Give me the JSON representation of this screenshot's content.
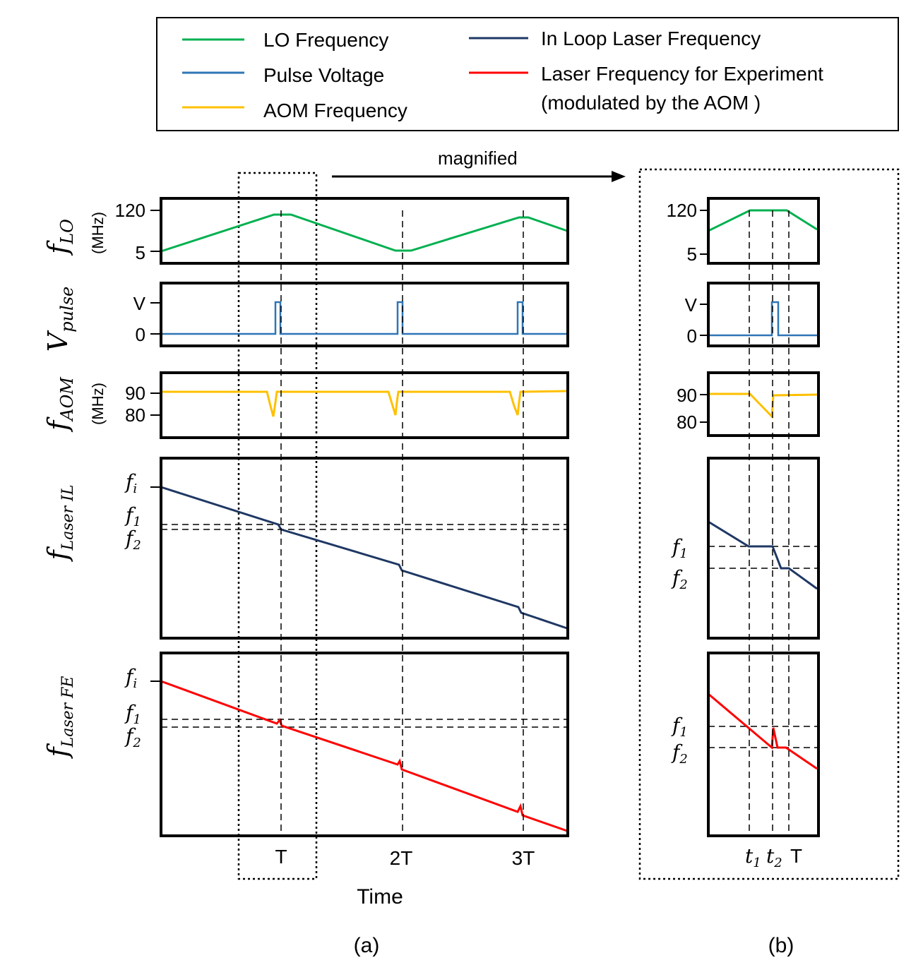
{
  "legend": {
    "items": [
      {
        "label": "LO Frequency",
        "color": "#00b050"
      },
      {
        "label": "Pulse Voltage",
        "color": "#2e75b6"
      },
      {
        "label": "AOM Frequency",
        "color": "#ffc000"
      },
      {
        "label": "In Loop Laser Frequency",
        "color": "#1f3864"
      },
      {
        "label": "Laser Frequency  for Experiment",
        "label_line2": "(modulated by the AOM )",
        "color": "#ff0000"
      }
    ]
  },
  "magnified_label": "magnified",
  "panels": {
    "flo": {
      "symbol": "f",
      "subscript": "LO",
      "unit": "(MHz)",
      "ticks": [
        "120",
        "5"
      ]
    },
    "vpulse": {
      "symbol": "V",
      "subscript": "pulse",
      "ticks": [
        "V",
        "0"
      ]
    },
    "faom": {
      "symbol": "f",
      "subscript": "AOM",
      "unit": "(MHz)",
      "ticks": [
        "90",
        "80"
      ]
    },
    "flaser_il": {
      "symbol": "f",
      "subscript": "Laser IL",
      "ticks": [
        "f",
        "f",
        "f"
      ],
      "tick_subs": [
        "i",
        "1",
        "2"
      ]
    },
    "flaser_fe": {
      "symbol": "f",
      "subscript": "Laser FE",
      "ticks": [
        "f",
        "f",
        "f"
      ],
      "tick_subs": [
        "i",
        "1",
        "2"
      ]
    }
  },
  "time_ticks": {
    "a": [
      "T",
      "2T",
      "3T"
    ],
    "b": [
      "t",
      "t",
      "T"
    ],
    "b_subs": [
      "1",
      "2"
    ]
  },
  "xlabel": "Time",
  "caption_a": "(a)",
  "caption_b": "(b)"
}
